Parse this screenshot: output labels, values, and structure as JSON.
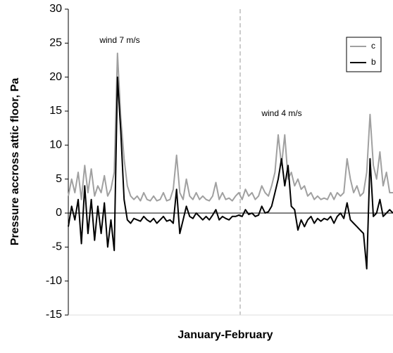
{
  "chart_data": {
    "type": "line",
    "y_label": "Pressure accross attic floor, Pa",
    "x_label": "January-February",
    "annotations": [
      "wind 7 m/s",
      "wind 4 m/s"
    ],
    "ylim": [
      -15,
      30
    ],
    "yticks": [
      30,
      25,
      20,
      15,
      10,
      5,
      0,
      -5,
      -10,
      -15
    ],
    "legend": "upper right",
    "series": [
      {
        "name": "c",
        "color": "#a0a0a0",
        "values": [
          2.5,
          5,
          3,
          6,
          2,
          7,
          3,
          6.5,
          2.5,
          4,
          3,
          5.5,
          2.5,
          3.5,
          6,
          23.5,
          14,
          8,
          4,
          2.5,
          2,
          2.5,
          1.8,
          3,
          2,
          1.8,
          2.5,
          1.8,
          2,
          3,
          1.8,
          2,
          3.5,
          8.5,
          3,
          2,
          5,
          2.5,
          2,
          3,
          2,
          2.5,
          2,
          1.8,
          2.5,
          4.5,
          2,
          3,
          2,
          2.2,
          1.8,
          2.5,
          3,
          2,
          3.5,
          2.5,
          3,
          2,
          2.5,
          4,
          3,
          2.5,
          4,
          6,
          11.5,
          7,
          11.5,
          5,
          6,
          4,
          5,
          3.5,
          4,
          2.5,
          3,
          2,
          2.5,
          2,
          2.2,
          2,
          3,
          2,
          3,
          2.5,
          3,
          8,
          5,
          3,
          4,
          2.5,
          3,
          6,
          14.5,
          7,
          5,
          9,
          4,
          6,
          3,
          3
        ]
      },
      {
        "name": "b",
        "color": "#000000",
        "values": [
          -2,
          1,
          -1,
          2,
          -4.5,
          4,
          -3,
          2,
          -4,
          1,
          -3,
          1.5,
          -5,
          -1,
          -5.5,
          20,
          12,
          2,
          -1,
          -1.5,
          -0.8,
          -1,
          -1.2,
          -0.5,
          -1,
          -1.3,
          -0.8,
          -1.5,
          -1,
          -0.5,
          -1.2,
          -1,
          -1.5,
          3.5,
          -3,
          -1,
          1,
          -0.5,
          -0.8,
          0,
          -0.5,
          -1,
          -0.5,
          -1,
          -0.3,
          0.5,
          -1,
          -0.5,
          -0.8,
          -1,
          -0.5,
          -0.5,
          -0.3,
          -0.5,
          0.5,
          -0.2,
          0,
          -0.5,
          -0.3,
          1,
          0,
          0.2,
          1,
          3,
          5,
          8,
          4,
          7,
          1,
          0.5,
          -2.5,
          -1,
          -2,
          -1,
          -0.5,
          -1.5,
          -0.8,
          -1.2,
          -0.8,
          -1,
          -0.5,
          -1.5,
          -0.5,
          0,
          -0.8,
          1.5,
          -1,
          -1.5,
          -2,
          -2.5,
          -3,
          -8.2,
          8,
          -0.5,
          0,
          2,
          -0.5,
          0,
          0.5,
          0
        ]
      }
    ]
  }
}
